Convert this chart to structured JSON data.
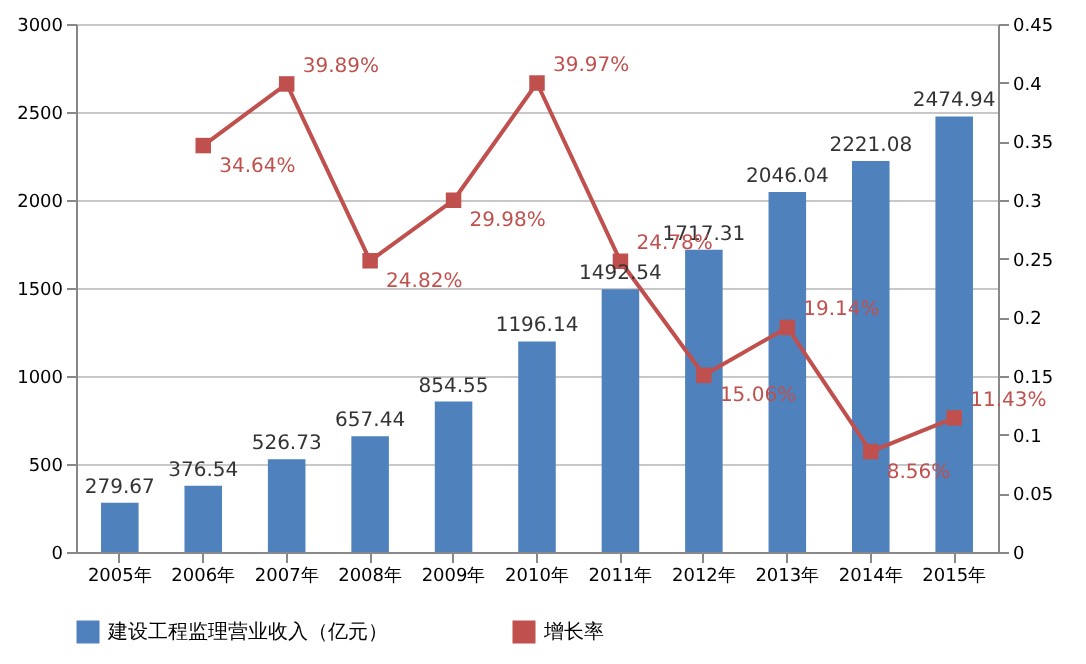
{
  "chart_data": {
    "type": "bar",
    "categories": [
      "2005年",
      "2006年",
      "2007年",
      "2008年",
      "2009年",
      "2010年",
      "2011年",
      "2012年",
      "2013年",
      "2014年",
      "2015年"
    ],
    "series": [
      {
        "name": "建设工程监理营业收入（亿元）",
        "color": "#4f81bd",
        "values": [
          279.67,
          376.54,
          526.73,
          657.44,
          854.55,
          1196.14,
          1492.54,
          1717.31,
          2046.04,
          2221.08,
          2474.94
        ],
        "data_labels": true
      },
      {
        "name": "增长率",
        "type": "line",
        "axis": "y2",
        "color": "#c0504d",
        "marker": "square",
        "values": [
          null,
          0.3464,
          0.3989,
          0.2482,
          0.2998,
          0.3997,
          0.2478,
          0.1506,
          0.1914,
          0.0856,
          0.1143
        ],
        "value_labels": [
          null,
          "34.64%",
          "39.89%",
          "24.82%",
          "29.98%",
          "39.97%",
          "24.78%",
          "15.06%",
          "19.14%",
          "8.56%",
          "11.43%"
        ]
      }
    ],
    "ylim": [
      0,
      3000
    ],
    "yticks": [
      0,
      500,
      1000,
      1500,
      2000,
      2500,
      3000
    ],
    "y2lim": [
      0,
      0.45
    ],
    "y2ticks": [
      0,
      0.05,
      0.1,
      0.15,
      0.2,
      0.25,
      0.3,
      0.35,
      0.4,
      0.45
    ],
    "grid": "y",
    "legend": "bottom"
  }
}
